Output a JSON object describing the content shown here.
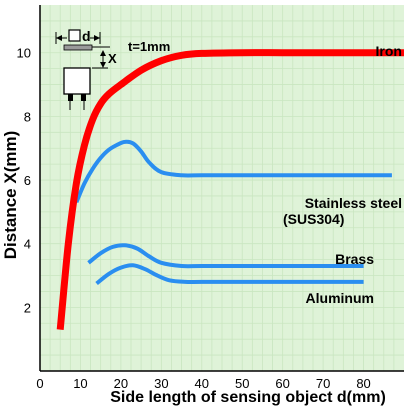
{
  "chart_data": {
    "type": "line",
    "xlabel": "Side length of sensing object d(mm)",
    "ylabel": "Distance X(mm)",
    "xlim": [
      0,
      90
    ],
    "ylim": [
      0,
      11.5
    ],
    "x_ticks": [
      0,
      10,
      20,
      30,
      40,
      50,
      60,
      70,
      80
    ],
    "y_ticks": [
      2,
      4,
      6,
      8,
      10
    ],
    "grid": true,
    "plot_background": "#dff3d8",
    "grid_color": "#c9e6c0",
    "series": [
      {
        "name": "Iron",
        "color": "#ff0000",
        "x": [
          5,
          7,
          9,
          11,
          13,
          15,
          17,
          20,
          25,
          30,
          35,
          40,
          50,
          60,
          70,
          80,
          90
        ],
        "y": [
          1.3,
          4.0,
          5.9,
          7.1,
          7.9,
          8.4,
          8.7,
          9.0,
          9.45,
          9.75,
          9.92,
          9.98,
          10.0,
          10.0,
          10.0,
          10.0,
          10.0
        ]
      },
      {
        "name": "Stainless steel (SUS304)",
        "color": "#2a8ef0",
        "x": [
          9,
          11,
          13,
          15,
          17,
          19,
          21,
          23,
          25,
          27,
          30,
          35,
          40,
          50,
          60,
          70,
          80,
          87
        ],
        "y": [
          5.3,
          5.9,
          6.35,
          6.7,
          6.95,
          7.1,
          7.2,
          7.15,
          6.9,
          6.55,
          6.25,
          6.15,
          6.15,
          6.15,
          6.15,
          6.15,
          6.15,
          6.15
        ]
      },
      {
        "name": "Brass",
        "color": "#2a8ef0",
        "x": [
          12,
          15,
          18,
          21,
          24,
          27,
          30,
          35,
          40,
          50,
          60,
          70,
          80
        ],
        "y": [
          3.4,
          3.7,
          3.9,
          3.95,
          3.85,
          3.6,
          3.4,
          3.3,
          3.3,
          3.3,
          3.3,
          3.3,
          3.3
        ]
      },
      {
        "name": "Aluminum",
        "color": "#2a8ef0",
        "x": [
          14,
          17,
          20,
          23,
          26,
          29,
          32,
          36,
          40,
          50,
          60,
          70,
          80
        ],
        "y": [
          2.75,
          3.05,
          3.25,
          3.32,
          3.2,
          3.0,
          2.85,
          2.8,
          2.8,
          2.8,
          2.8,
          2.8,
          2.8
        ]
      }
    ],
    "inset": {
      "d_label": "d",
      "t_label": "t=1mm",
      "x_label": "X"
    }
  }
}
